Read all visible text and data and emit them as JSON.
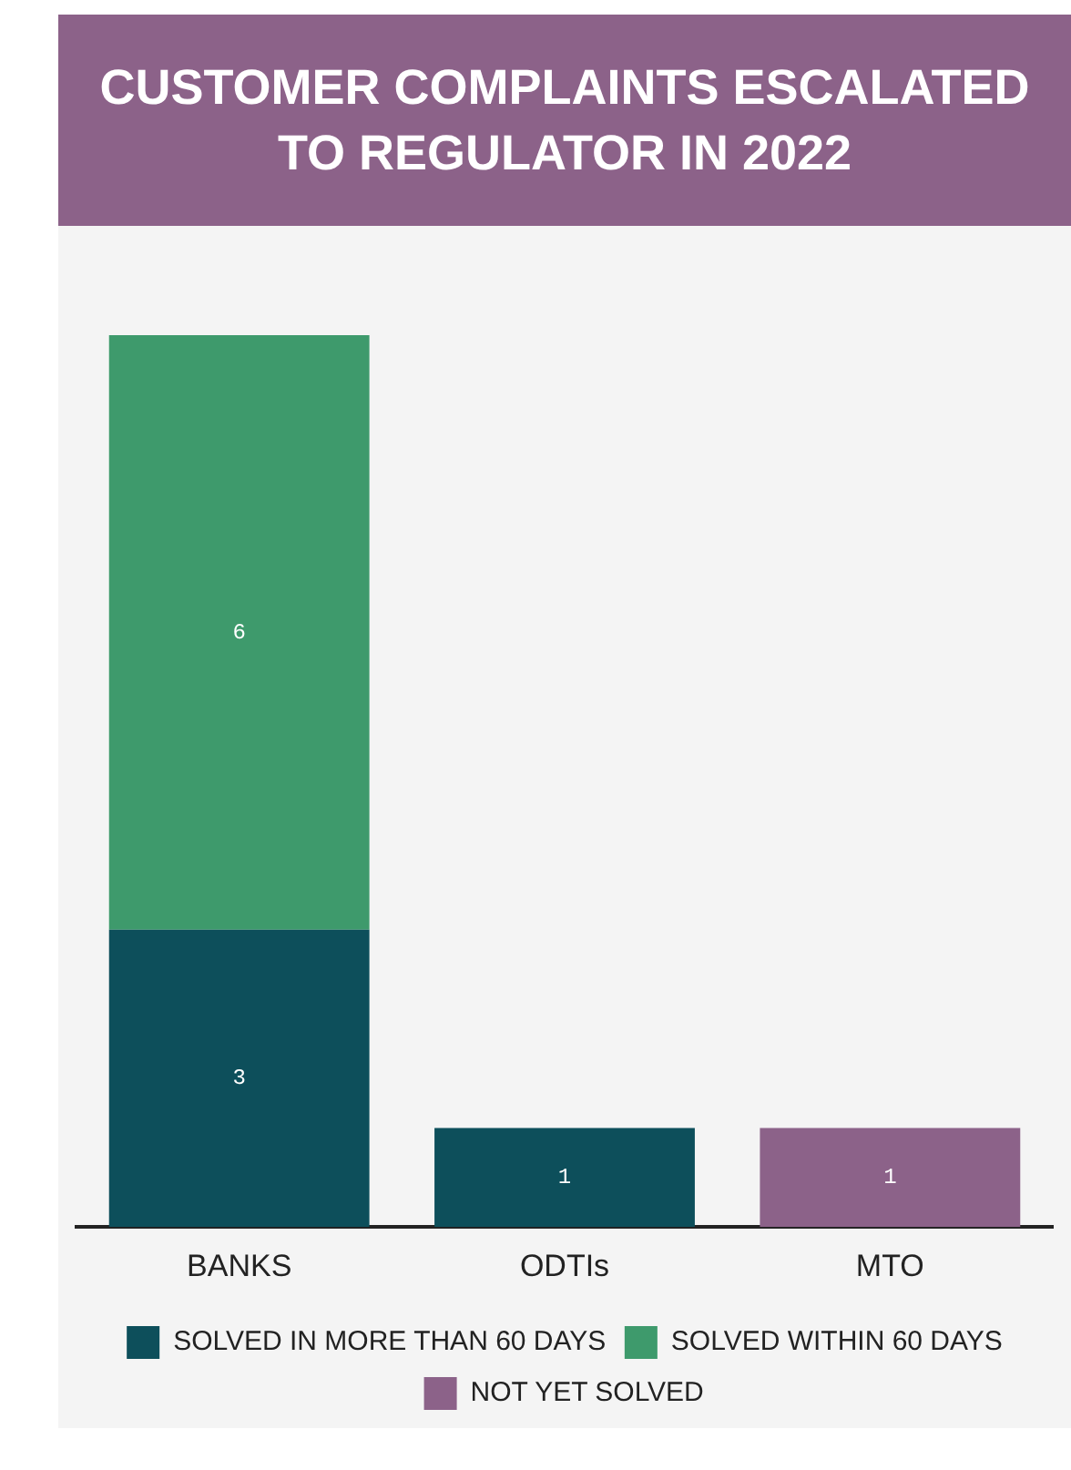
{
  "chart_data": {
    "type": "bar",
    "title": "CUSTOMER COMPLAINTS ESCALATED TO REGULATOR IN 2022",
    "categories": [
      "BANKS",
      "ODTIs",
      "MTO"
    ],
    "stacked": true,
    "data_labels": true,
    "legend": "bottom",
    "grid": false,
    "series": [
      {
        "name": "SOLVED IN MORE THAN 60 DAYS",
        "color": "#0d4f5b",
        "values": [
          3,
          1,
          null
        ]
      },
      {
        "name": "SOLVED WITHIN 60 DAYS",
        "color": "#3e9a6c",
        "values": [
          6,
          null,
          null
        ]
      },
      {
        "name": "NOT YET SOLVED",
        "color": "#8c6289",
        "values": [
          null,
          null,
          1
        ]
      }
    ]
  }
}
